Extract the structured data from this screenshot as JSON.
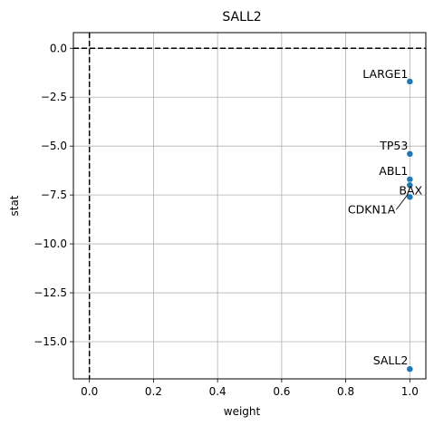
{
  "chart_data": {
    "type": "scatter",
    "title": "SALL2",
    "xlabel": "weight",
    "ylabel": "stat",
    "xlim": [
      -0.05,
      1.05
    ],
    "ylim": [
      -16.9,
      0.8
    ],
    "xticks": [
      0.0,
      0.2,
      0.4,
      0.6,
      0.8,
      1.0
    ],
    "xtick_labels": [
      "0.0",
      "0.2",
      "0.4",
      "0.6",
      "0.8",
      "1.0"
    ],
    "yticks": [
      0.0,
      -2.5,
      -5.0,
      -7.5,
      -10.0,
      -12.5,
      -15.0
    ],
    "ytick_labels": [
      "0.0",
      "−2.5",
      "−5.0",
      "−7.5",
      "−10.0",
      "−12.5",
      "−15.0"
    ],
    "grid": true,
    "reference_lines": {
      "x": 0.0,
      "y": 0.0,
      "style": "dashed",
      "color": "#000000"
    },
    "marker_color": "#1f77b4",
    "points": [
      {
        "label": "LARGE1",
        "x": 1.0,
        "y": -1.7
      },
      {
        "label": "TP53",
        "x": 1.0,
        "y": -5.4
      },
      {
        "label": "ABL1",
        "x": 1.0,
        "y": -6.7
      },
      {
        "label": "BAX",
        "x": 1.0,
        "y": -7.0
      },
      {
        "label": "CDKN1A",
        "x": 1.0,
        "y": -7.6
      },
      {
        "label": "SALL2",
        "x": 1.0,
        "y": -16.4
      }
    ]
  }
}
